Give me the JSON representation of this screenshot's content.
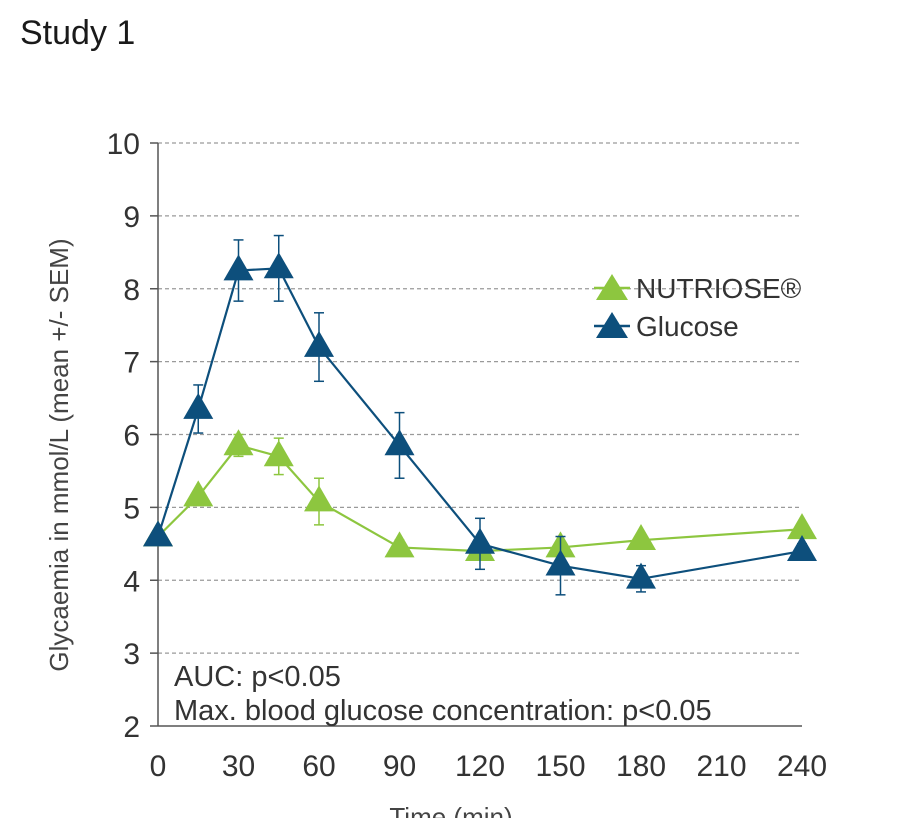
{
  "figure": {
    "title": "Study 1"
  },
  "chart_data": {
    "type": "line",
    "title": "",
    "xlabel": "Time (min)",
    "ylabel": "Glycaemia in mmol/L (mean +/- SEM)",
    "xlim": [
      0,
      240
    ],
    "ylim": [
      2,
      10
    ],
    "x_ticks": [
      0,
      30,
      60,
      90,
      120,
      150,
      180,
      210,
      240
    ],
    "y_ticks": [
      2,
      3,
      4,
      5,
      6,
      7,
      8,
      9,
      10
    ],
    "grid": "horizontal dashed",
    "legend": "top-right",
    "series": [
      {
        "name": "NUTRIOSE®",
        "color": "#8dc63f",
        "marker": "triangle",
        "x": [
          0,
          15,
          30,
          45,
          60,
          90,
          120,
          150,
          180,
          240
        ],
        "y": [
          4.6,
          5.15,
          5.85,
          5.7,
          5.08,
          4.45,
          4.4,
          4.45,
          4.55,
          4.7
        ],
        "err": [
          0.05,
          0.08,
          0.15,
          0.25,
          0.32,
          0.1,
          0.06,
          0.06,
          0.05,
          0.05
        ]
      },
      {
        "name": "Glucose",
        "color": "#0d4f7c",
        "marker": "triangle",
        "x": [
          0,
          15,
          30,
          45,
          60,
          90,
          120,
          150,
          180,
          240
        ],
        "y": [
          4.6,
          6.35,
          8.25,
          8.28,
          7.2,
          5.85,
          4.5,
          4.2,
          4.02,
          4.4
        ],
        "err": [
          0.05,
          0.33,
          0.42,
          0.45,
          0.47,
          0.45,
          0.35,
          0.4,
          0.18,
          0.1
        ]
      }
    ],
    "annotations": [
      "AUC: p<0.05",
      "Max. blood glucose concentration: p<0.05"
    ]
  }
}
